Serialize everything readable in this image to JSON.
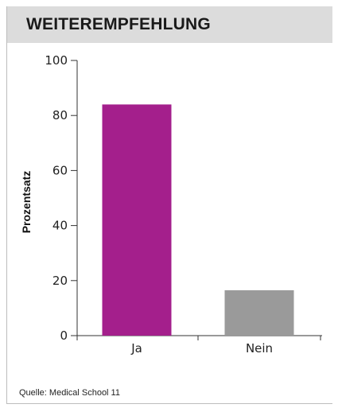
{
  "header": {
    "title": "WEITEREMPFEHLUNG"
  },
  "footer": {
    "source": "Quelle: Medical School 11"
  },
  "chart_data": {
    "type": "bar",
    "title": "",
    "xlabel": "",
    "ylabel": "Prozentsatz",
    "categories": [
      "Ja",
      "Nein"
    ],
    "values": [
      84,
      16.5
    ],
    "ylim": [
      0,
      100
    ],
    "yticks": [
      0,
      20,
      40,
      60,
      80,
      100
    ],
    "grid": false,
    "colors": [
      "#a41f8c",
      "#9a9a9a"
    ]
  }
}
